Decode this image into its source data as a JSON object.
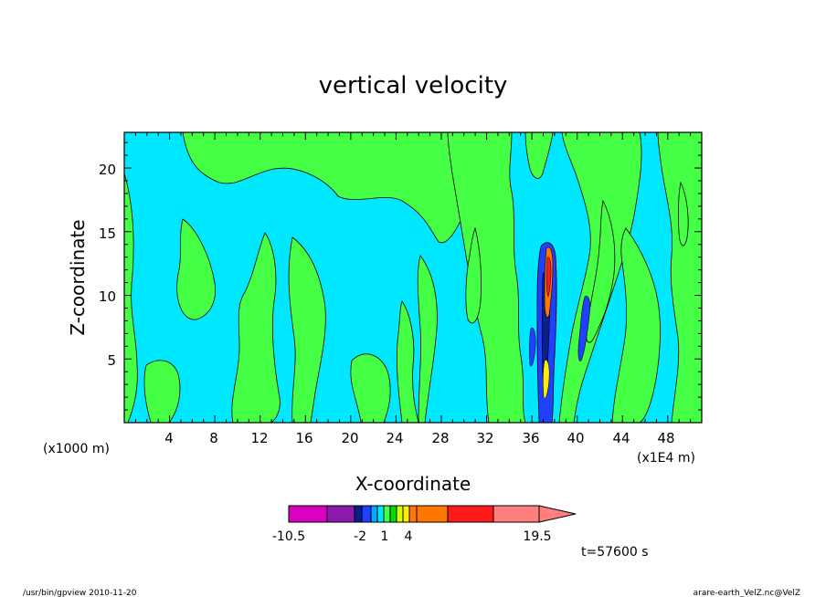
{
  "chart_data": {
    "type": "heatmap",
    "title": "vertical velocity",
    "xlabel": "X-coordinate",
    "ylabel": "Z-coordinate",
    "x_unit_left": "(x1000 m)",
    "x_unit_right": "(x1E4 m)",
    "xlim": [
      0,
      51
    ],
    "ylim": [
      0,
      22.8
    ],
    "x_ticks": [
      "4",
      "8",
      "12",
      "16",
      "20",
      "24",
      "28",
      "32",
      "36",
      "40",
      "44",
      "48"
    ],
    "y_ticks": [
      "5",
      "10",
      "15",
      "20"
    ],
    "colorbar": {
      "levels": [
        -10.5,
        -8,
        -5,
        -3,
        -2,
        -1,
        0,
        1,
        2,
        3,
        4,
        7,
        11,
        15,
        19.5
      ],
      "colors": [
        "#d900c0",
        "#8c1aaa",
        "#0a1f8a",
        "#2040ff",
        "#00aaff",
        "#00e8ff",
        "#44ff44",
        "#00dd00",
        "#d6ff00",
        "#ffee00",
        "#ff7700",
        "#ff7700",
        "#ff1a1a",
        "#ff7f7f"
      ],
      "tick_labels": [
        "-10.5",
        "-2",
        "1",
        "4",
        "19.5"
      ],
      "extend": "max"
    },
    "time_label": "t=57600 s"
  },
  "footer": {
    "left": "/usr/bin/gpview   2010-11-20",
    "right": "arare-earth_VelZ.nc@VelZ"
  }
}
